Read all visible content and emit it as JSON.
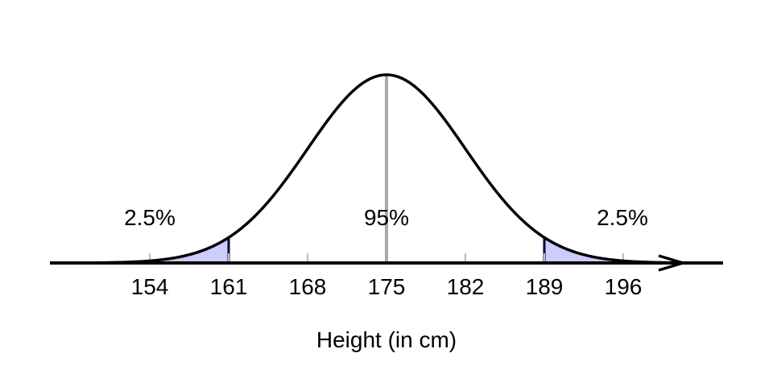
{
  "chart_data": {
    "type": "area",
    "distribution": "normal",
    "mean": 175,
    "sd": 7,
    "xlabel": "Height (in cm)",
    "ticks": [
      154,
      161,
      168,
      175,
      182,
      189,
      196
    ],
    "tick_labels": [
      "154",
      "161",
      "168",
      "175",
      "182",
      "189",
      "196"
    ],
    "shaded_regions": [
      {
        "from": 154,
        "to": 161,
        "label": "2.5%"
      },
      {
        "from": 189,
        "to": 196,
        "label": "2.5%"
      }
    ],
    "center_label": "95%",
    "colors": {
      "curve": "#000000",
      "shade": "#ccccff",
      "mean_line": "#aaaaaa",
      "tick": "#bbbbbb",
      "axis": "#000000"
    }
  }
}
